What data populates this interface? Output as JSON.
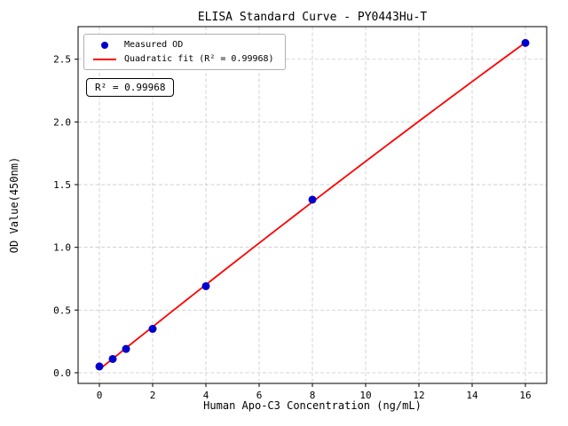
{
  "chart_data": {
    "type": "scatter",
    "title": "ELISA Standard Curve - PY0443Hu-T",
    "xlabel": "Human Apo-C3 Concentration (ng/mL)",
    "ylabel": "OD Value(450nm)",
    "xlim": [
      -0.8,
      16.8
    ],
    "ylim": [
      -0.085,
      2.76
    ],
    "xticks": [
      0,
      2,
      4,
      6,
      8,
      10,
      12,
      14,
      16
    ],
    "xtick_labels": [
      "0",
      "2",
      "4",
      "6",
      "8",
      "10",
      "12",
      "14",
      "16"
    ],
    "yticks": [
      0.0,
      0.5,
      1.0,
      1.5,
      2.0,
      2.5
    ],
    "ytick_labels": [
      "0.0",
      "0.5",
      "1.0",
      "1.5",
      "2.0",
      "2.5"
    ],
    "grid": true,
    "series": [
      {
        "name": "Measured OD",
        "type": "scatter",
        "color": "#0000cd",
        "x": [
          0,
          0.5,
          1,
          2,
          4,
          8,
          16
        ],
        "y": [
          0.05,
          0.11,
          0.19,
          0.35,
          0.69,
          1.38,
          2.63
        ]
      },
      {
        "name": "Quadratic fit (R² = 0.99968)",
        "type": "quadratic-fit",
        "color": "#ff0000",
        "fit_range": [
          0,
          16
        ]
      }
    ],
    "legend": {
      "position": "upper-left",
      "entries": [
        {
          "label": "Measured OD",
          "marker": "dot",
          "color": "#0000cd"
        },
        {
          "label": "Quadratic fit (R² = 0.99968)",
          "marker": "line",
          "color": "#ff0000"
        }
      ]
    },
    "annotation": "R² = 0.99968",
    "r_squared": 0.99968,
    "style": {
      "grid_color": "#c9c9c9",
      "frame_color": "#000000",
      "background": "#ffffff"
    }
  }
}
